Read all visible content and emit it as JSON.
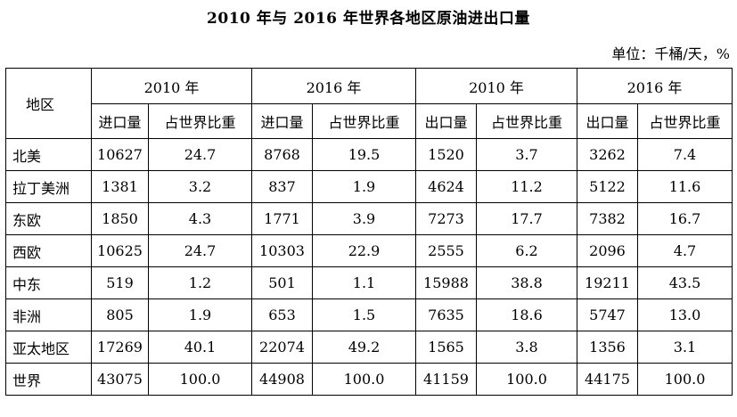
{
  "title": "2010 年与 2016 年世界各地区原油进出口量",
  "unit": "单位：千桶/天，%",
  "header": {
    "region": "地区",
    "groups": [
      "2010 年",
      "2016 年",
      "2010 年",
      "2016 年"
    ],
    "subs": [
      "进口量",
      "占世界比重",
      "进口量",
      "占世界比重",
      "出口量",
      "占世界比重",
      "出口量",
      "占世界比重"
    ]
  },
  "rows": [
    {
      "region": "北美",
      "cells": [
        "10627",
        "24.7",
        "8768",
        "19.5",
        "1520",
        "3.7",
        "3262",
        "7.4"
      ]
    },
    {
      "region": "拉丁美洲",
      "cells": [
        "1381",
        "3.2",
        "837",
        "1.9",
        "4624",
        "11.2",
        "5122",
        "11.6"
      ]
    },
    {
      "region": "东欧",
      "cells": [
        "1850",
        "4.3",
        "1771",
        "3.9",
        "7273",
        "17.7",
        "7382",
        "16.7"
      ]
    },
    {
      "region": "西欧",
      "cells": [
        "10625",
        "24.7",
        "10303",
        "22.9",
        "2555",
        "6.2",
        "2096",
        "4.7"
      ]
    },
    {
      "region": "中东",
      "cells": [
        "519",
        "1.2",
        "501",
        "1.1",
        "15988",
        "38.8",
        "19211",
        "43.5"
      ]
    },
    {
      "region": "非洲",
      "cells": [
        "805",
        "1.9",
        "653",
        "1.5",
        "7635",
        "18.6",
        "5747",
        "13.0"
      ]
    },
    {
      "region": "亚太地区",
      "cells": [
        "17269",
        "40.1",
        "22074",
        "49.2",
        "1565",
        "3.8",
        "1356",
        "3.1"
      ]
    },
    {
      "region": "世界",
      "cells": [
        "43075",
        "100.0",
        "44908",
        "100.0",
        "41159",
        "100.0",
        "44175",
        "100.0"
      ]
    }
  ]
}
